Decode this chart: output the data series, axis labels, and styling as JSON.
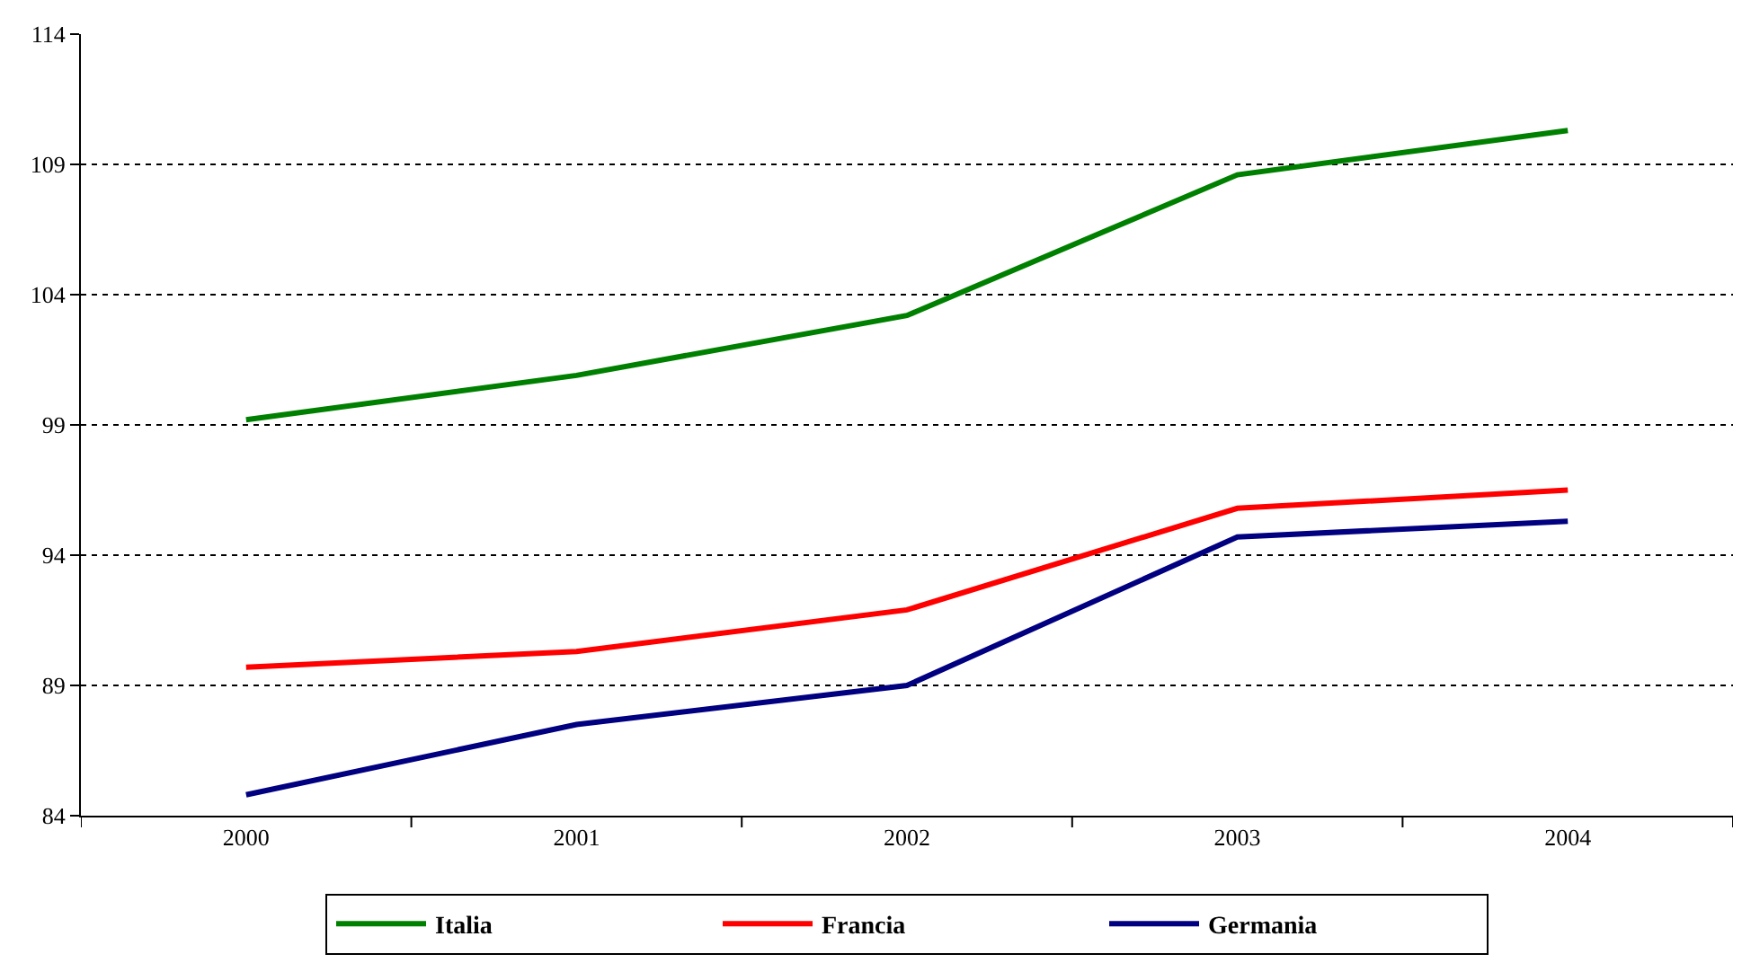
{
  "chart_data": {
    "type": "line",
    "categories": [
      "2000",
      "2001",
      "2002",
      "2003",
      "2004"
    ],
    "series": [
      {
        "name": "Italia",
        "color": "#008000",
        "values": [
          99.2,
          100.9,
          103.2,
          108.6,
          110.3
        ]
      },
      {
        "name": "Francia",
        "color": "#ff0000",
        "values": [
          89.7,
          90.3,
          91.9,
          95.8,
          96.5
        ]
      },
      {
        "name": "Germania",
        "color": "#000080",
        "values": [
          84.8,
          87.5,
          89.0,
          94.7,
          95.3
        ]
      }
    ],
    "ylim": [
      84,
      114
    ],
    "yticks": [
      84,
      89,
      94,
      99,
      104,
      109,
      114
    ],
    "grid": "y",
    "legend": "bottom",
    "marker": "none",
    "line_style": "solid"
  }
}
